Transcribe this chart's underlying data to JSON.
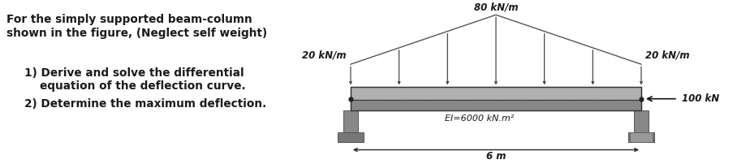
{
  "bg_color": "#ffffff",
  "text_color": "#1a1a1a",
  "label_80": "80 kN/m",
  "label_20_left": "20 kN/m",
  "label_20_right": "20 kN/m",
  "label_100": "100 kN",
  "label_EI": "EI=6000 kN.m²",
  "label_6m": "6 m",
  "beam_color": "#b0b0b0",
  "beam_edge_color": "#333333",
  "beam_dark": "#888888",
  "support_color": "#888888",
  "support_dark": "#555555",
  "base_color": "#777777",
  "dotted_color": "#999999",
  "load_line_color": "#333333",
  "triangle_color": "#555555",
  "arrow_color": "#111111",
  "dim_color": "#222222",
  "line1": "For the simply supported beam-column",
  "line2": "shown in the figure, (Neglect self weight)",
  "line3": "1) Derive and solve the differential",
  "line4": "    equation of the deflection curve.",
  "line5": "2) Determine the maximum deflection.",
  "fs_text": 9.8,
  "fs_label": 8.5,
  "fs_EI": 8.0,
  "fs_dim": 8.5
}
